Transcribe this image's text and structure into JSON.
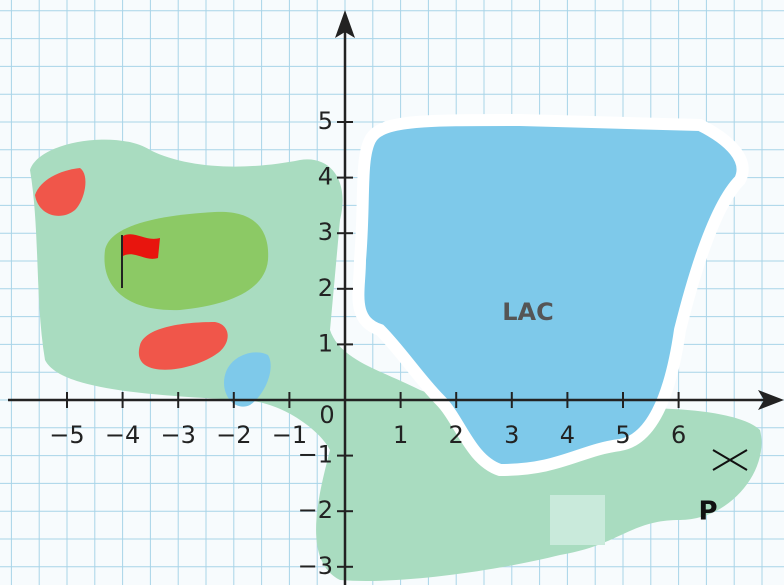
{
  "axes": {
    "x_labels": [
      "−5",
      "−4",
      "−3",
      "−2",
      "−1",
      "1",
      "2",
      "3",
      "4",
      "5",
      "6"
    ],
    "origin_label": "0",
    "y_labels": [
      "5",
      "4",
      "3",
      "2",
      "1",
      "−1",
      "−2",
      "−3"
    ]
  },
  "labels": {
    "lake": "LAC",
    "point": "P"
  }
}
